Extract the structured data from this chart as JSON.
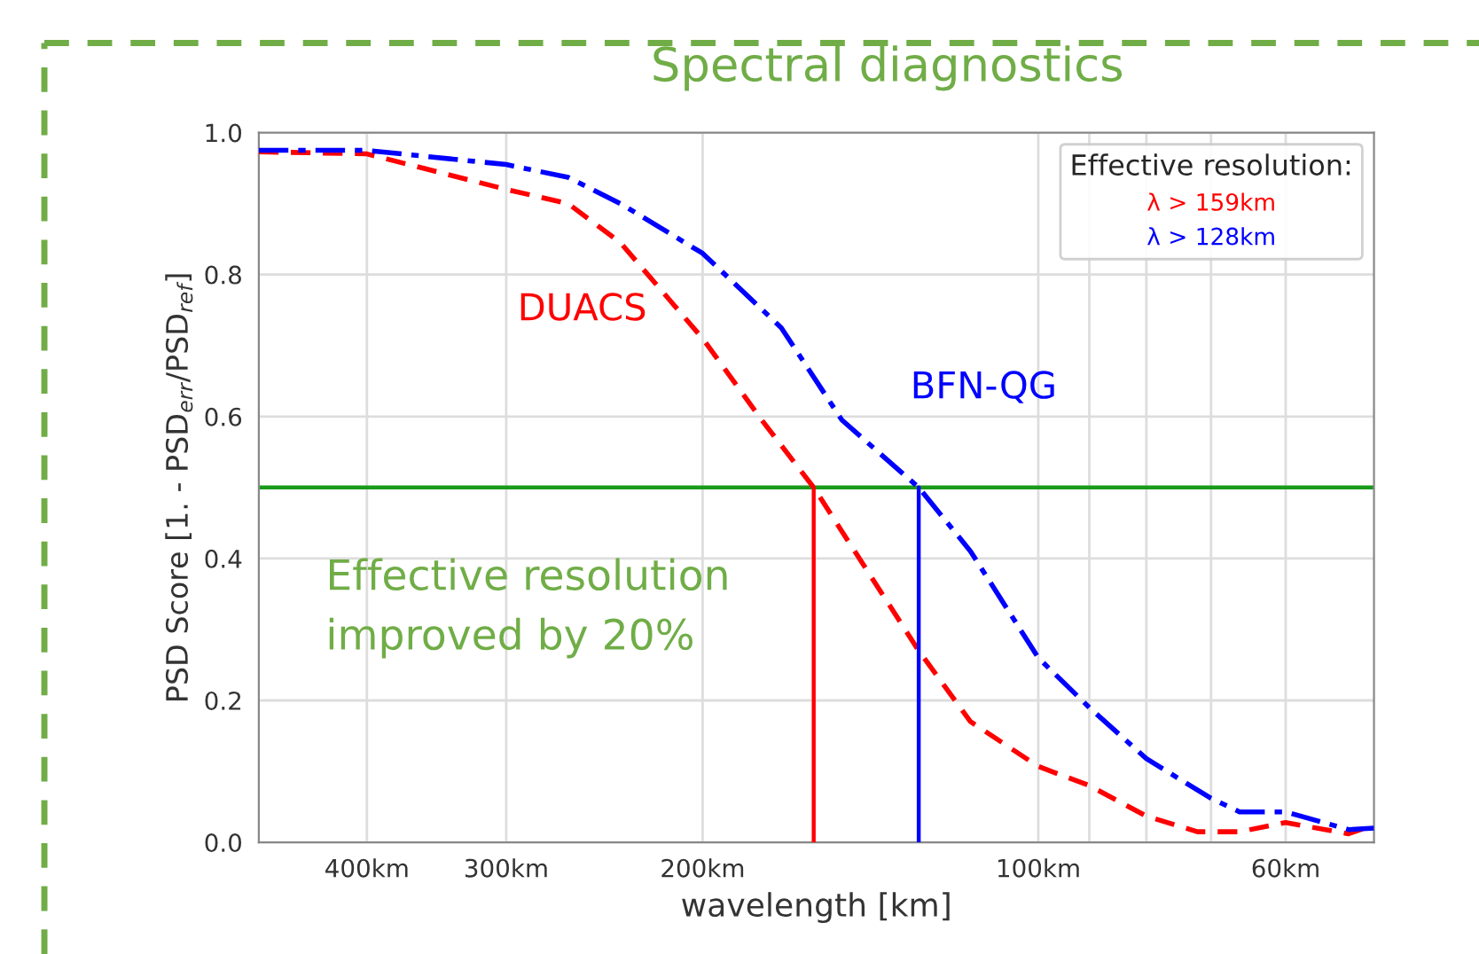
{
  "chart_data": {
    "type": "line",
    "title": "Spectral diagnostics",
    "xlabel": "wavelength [km]",
    "ylabel": "PSD Score [1. - PSD$_{err}$/PSD$_{ref}$]",
    "legend_title": "Effective resolution:",
    "legend": "top right",
    "grid": true,
    "log": "x",
    "xlim": [
      500,
      50
    ],
    "ylim": [
      0.0,
      1.0
    ],
    "xticks": [
      {
        "value": 400,
        "label": "400km"
      },
      {
        "value": 300,
        "label": "300km"
      },
      {
        "value": 200,
        "label": "200km"
      },
      {
        "value": 100,
        "label": "100km"
      },
      {
        "value": 90,
        "label": null
      },
      {
        "value": 80,
        "label": null
      },
      {
        "value": 70,
        "label": null
      },
      {
        "value": 60,
        "label": "60km"
      }
    ],
    "yticks": [
      {
        "value": 0,
        "label": "0.0"
      },
      0.2,
      0.4,
      0.6,
      0.8,
      {
        "value": 1,
        "label": "1.0"
      }
    ],
    "series": [
      {
        "color": "#ff0000",
        "line_style": "dashed",
        "x": [
          500,
          400,
          300,
          264,
          237,
          200,
          177,
          159,
          128,
          115,
          100,
          90,
          80,
          72,
          66,
          60,
          52.7,
          50
        ],
        "values": [
          0.973,
          0.97,
          0.92,
          0.9,
          0.845,
          0.71,
          0.595,
          0.5,
          0.27,
          0.17,
          0.107,
          0.08,
          0.037,
          0.015,
          0.015,
          0.028,
          0.012,
          0.025
        ]
      },
      {
        "color": "#0000ff",
        "line_style": "dashdot",
        "x": [
          500,
          400,
          300,
          264,
          237,
          200,
          170,
          150,
          128,
          115,
          100,
          90,
          80,
          70,
          66,
          60,
          52.7,
          50
        ],
        "values": [
          0.975,
          0.975,
          0.955,
          0.937,
          0.9,
          0.83,
          0.725,
          0.595,
          0.5,
          0.41,
          0.26,
          0.19,
          0.118,
          0.062,
          0.043,
          0.043,
          0.018,
          0.02
        ]
      },
      {
        "name": "λ > 159km",
        "color": "#ff0000",
        "line_style": "solid",
        "x": [
          159,
          159
        ],
        "values": [
          0.0,
          0.5
        ]
      },
      {
        "name": "λ > 128km",
        "color": "#0000ff",
        "line_style": "solid",
        "x": [
          128,
          128
        ],
        "values": [
          0.0,
          0.5
        ]
      }
    ],
    "ref_lines": [
      {
        "axis": "y",
        "value": 0.5,
        "color": "#1a9a1a"
      }
    ],
    "annotations": [
      "DUACS",
      "BFN-QG",
      "Effective resolution\nimproved by 20%"
    ]
  }
}
